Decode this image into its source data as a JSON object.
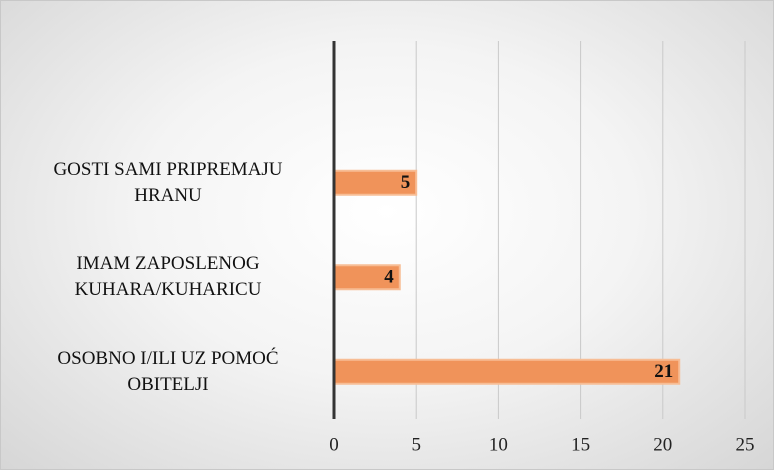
{
  "chart_data": {
    "type": "bar",
    "orientation": "horizontal",
    "categories": [
      "GOSTI SAMI PRIPREMAJU HRANU",
      "IMAM ZAPOSLENOG KUHARA/KUHARICU",
      "OSOBNO I/ILI UZ POMOĆ OBITELJI"
    ],
    "values": [
      5,
      4,
      21
    ],
    "color": "#f0935a",
    "xlim": [
      0,
      25
    ],
    "xticks": [
      0,
      5,
      10,
      15,
      20,
      25
    ],
    "grid": true
  }
}
